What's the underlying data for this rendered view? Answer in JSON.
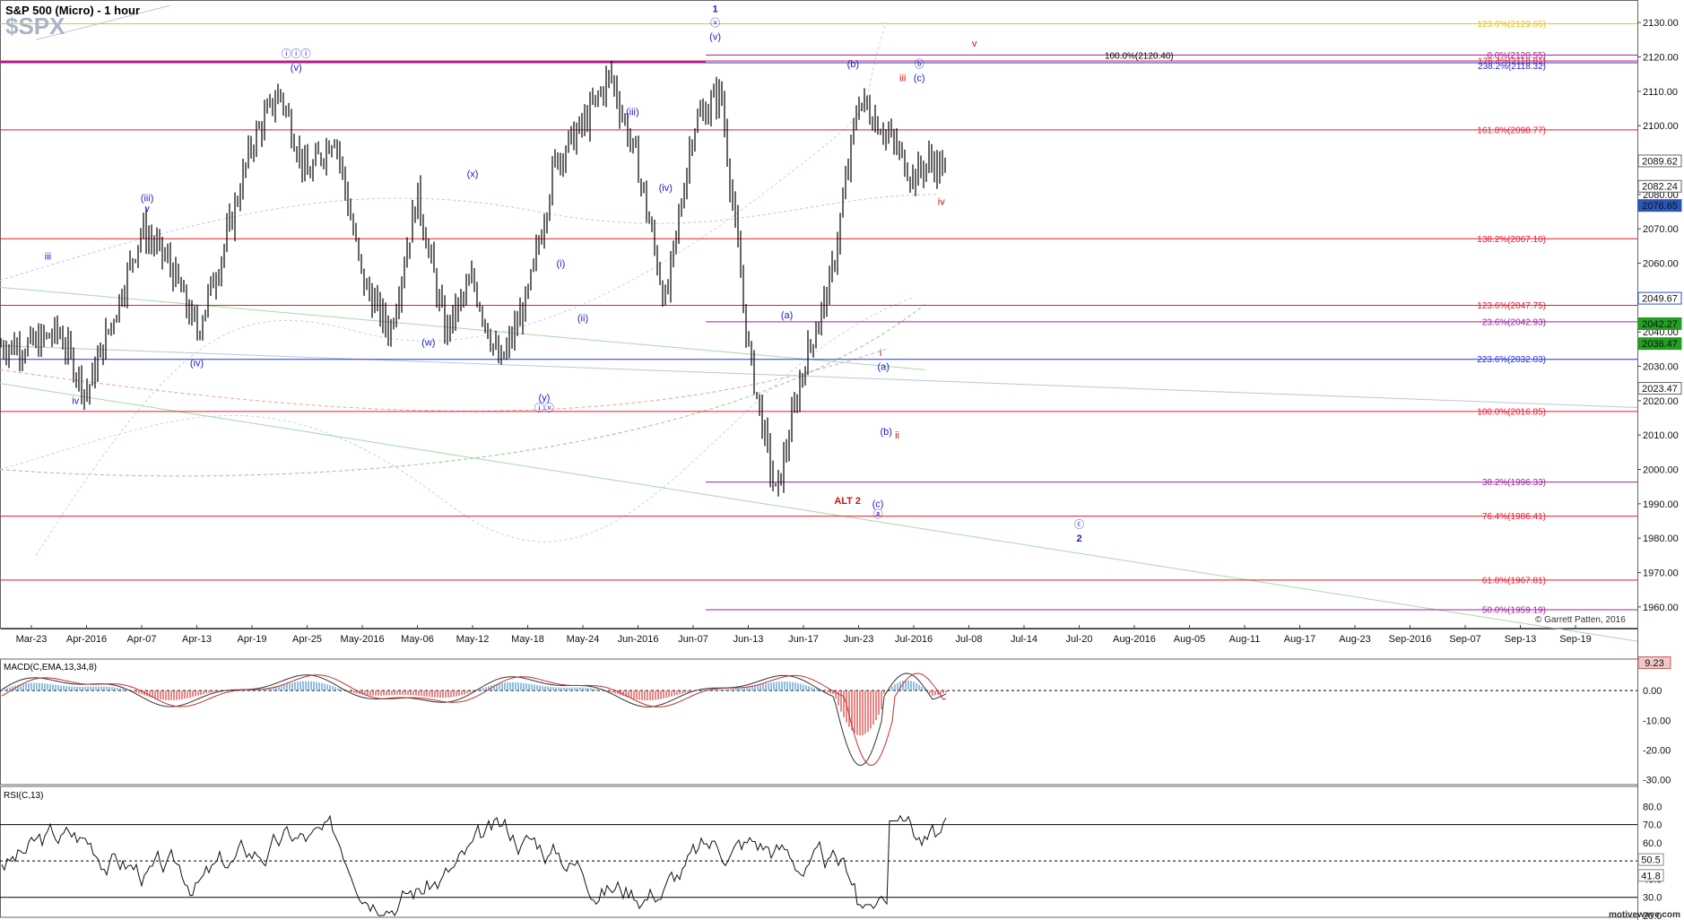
{
  "header": {
    "title": "S&P 500 (Micro) - 1 hour",
    "watermark": "$SPX"
  },
  "footer": {
    "brand": "motivewave.com",
    "copyright": "© Garrett Patten, 2016"
  },
  "colors": {
    "fib_red": "#e8192c",
    "fib_purple": "#a020a0",
    "fib_blue": "#2030e0",
    "fib_gold": "#e8c020",
    "wave_blue": "#1c1ccc",
    "wave_red": "#cc1111",
    "macd_up": "#6ea8d8",
    "macd_down": "#e06060",
    "tag_green": "#22a022",
    "tag_blue": "#2a56b8"
  },
  "chart_data": [
    {
      "type": "line",
      "title": "S&P 500 (Micro) - 1 hour",
      "ylim": [
        1955,
        2135
      ],
      "y_ticks": [
        1960,
        1970,
        1980,
        1990,
        2000,
        2010,
        2020,
        2030,
        2040,
        2050,
        2060,
        2070,
        2080,
        2090,
        2100,
        2110,
        2120,
        2130
      ],
      "x_ticks": [
        "Mar-23",
        "Apr-2016",
        "Apr-07",
        "Apr-13",
        "Apr-19",
        "Apr-25",
        "May-2016",
        "May-06",
        "May-12",
        "May-18",
        "May-24",
        "Jun-2016",
        "Jun-07",
        "Jun-13",
        "Jun-17",
        "Jun-23",
        "Jul-2016",
        "Jul-08",
        "Jul-14",
        "Jul-20",
        "Aug-2016",
        "Aug-05",
        "Aug-11",
        "Aug-17",
        "Aug-23",
        "Sep-2016",
        "Sep-07",
        "Sep-13",
        "Sep-19"
      ],
      "series": [
        {
          "name": "",
          "x_ticks_index": [
            0,
            0.5,
            1,
            1.5,
            2,
            2.5,
            3,
            3.5,
            4,
            4.5,
            5,
            5.5,
            6,
            6.5,
            7,
            7.5,
            8,
            8.5,
            9,
            9.5,
            10,
            10.5,
            11,
            11.5,
            12,
            12.5,
            13,
            13.5,
            14,
            14.5,
            15,
            15.5,
            16,
            16.3,
            16.6
          ],
          "values": [
            2036,
            2040,
            2022,
            2045,
            2070,
            2060,
            2040,
            2065,
            2095,
            2110,
            2085,
            2098,
            2055,
            2040,
            2080,
            2040,
            2055,
            2030,
            2050,
            2090,
            2100,
            2115,
            2088,
            2048,
            2100,
            2110,
            2035,
            1992,
            2030,
            2055,
            2108,
            2098,
            2085,
            2090,
            2086
          ]
        }
      ],
      "fib_levels": [
        {
          "label": "123.6%(2129.66)",
          "value": 2129.66,
          "color": "gold"
        },
        {
          "label": "0.0%(2120.55)",
          "value": 2120.55,
          "color": "purple"
        },
        {
          "label": "176.4%(2118.81)",
          "value": 2118.81,
          "color": "red"
        },
        {
          "label": "238.2%(2118.32)",
          "value": 2118.32,
          "color": "blue"
        },
        {
          "label": "100.0%(2120.40)",
          "value": 2120.4,
          "color": "black"
        },
        {
          "label": "161.8%(2098.77)",
          "value": 2098.77,
          "color": "red"
        },
        {
          "label": "138.2%(2067.10)",
          "value": 2067.1,
          "color": "red"
        },
        {
          "label": "123.6%(2047.75)",
          "value": 2047.75,
          "color": "red"
        },
        {
          "label": "23.6%(2042.93)",
          "value": 2042.93,
          "color": "purple"
        },
        {
          "label": "223.6%(2032.03)",
          "value": 2032.03,
          "color": "blue"
        },
        {
          "label": "100.0%(2016.85)",
          "value": 2016.85,
          "color": "red"
        },
        {
          "label": "38.2%(1996.33)",
          "value": 1996.33,
          "color": "purple"
        },
        {
          "label": "76.4%(1986.41)",
          "value": 1986.41,
          "color": "red"
        },
        {
          "label": "61.8%(1967.81)",
          "value": 1967.81,
          "color": "red"
        },
        {
          "label": "50.0%(1959.19)",
          "value": 1959.19,
          "color": "purple"
        }
      ],
      "price_tags": [
        {
          "label": "2089.62",
          "value": 2089.62,
          "style": "plain"
        },
        {
          "label": "2082.24",
          "value": 2082.24,
          "style": "plain"
        },
        {
          "label": "2076.65",
          "value": 2076.65,
          "style": "blue"
        },
        {
          "label": "2049.67",
          "value": 2049.67,
          "style": "blue-outline"
        },
        {
          "label": "2042.27",
          "value": 2042.27,
          "style": "green"
        },
        {
          "label": "2036.47",
          "value": 2036.47,
          "style": "green"
        },
        {
          "label": "2023.47",
          "value": 2023.47,
          "style": "plain"
        }
      ],
      "wave_labels": [
        {
          "text": "iii",
          "color": "blue",
          "x_index": 0.3,
          "y": 2061
        },
        {
          "text": "iv",
          "color": "blue",
          "x_index": 0.8,
          "y": 2019
        },
        {
          "text": "(iii)",
          "color": "blue",
          "x_index": 2.1,
          "y": 2078
        },
        {
          "text": "v",
          "color": "blue",
          "x_index": 2.1,
          "y": 2075
        },
        {
          "text": "(iv)",
          "color": "blue",
          "x_index": 3.0,
          "y": 2030
        },
        {
          "text": "ⓘⓘⓘ",
          "color": "blue",
          "x_index": 4.8,
          "y": 2120
        },
        {
          "text": "(v)",
          "color": "blue",
          "x_index": 4.8,
          "y": 2116
        },
        {
          "text": "(x)",
          "color": "blue",
          "x_index": 8.0,
          "y": 2085
        },
        {
          "text": "(w)",
          "color": "blue",
          "x_index": 7.2,
          "y": 2036
        },
        {
          "text": "(y)",
          "color": "blue",
          "x_index": 9.3,
          "y": 2020
        },
        {
          "text": "ⓘⓥ",
          "color": "blue",
          "x_index": 9.3,
          "y": 2017
        },
        {
          "text": "(i)",
          "color": "blue",
          "x_index": 9.6,
          "y": 2059
        },
        {
          "text": "(ii)",
          "color": "blue",
          "x_index": 10.0,
          "y": 2043
        },
        {
          "text": "(iii)",
          "color": "blue",
          "x_index": 10.9,
          "y": 2103
        },
        {
          "text": "(iv)",
          "color": "blue",
          "x_index": 11.5,
          "y": 2081
        },
        {
          "text": "1",
          "color": "blue",
          "x_index": 12.4,
          "y": 2133
        },
        {
          "text": "ⓥ",
          "color": "blue",
          "x_index": 12.4,
          "y": 2129
        },
        {
          "text": "(v)",
          "color": "blue",
          "x_index": 12.4,
          "y": 2125
        },
        {
          "text": "(b)",
          "color": "blue",
          "x_index": 14.9,
          "y": 2117
        },
        {
          "text": "(a)",
          "color": "blue",
          "x_index": 13.7,
          "y": 2044
        },
        {
          "text": "iii",
          "color": "red",
          "x_index": 15.8,
          "y": 2113
        },
        {
          "text": "ⓑ",
          "color": "blue",
          "x_index": 16.1,
          "y": 2117
        },
        {
          "text": "(c)",
          "color": "blue",
          "x_index": 16.1,
          "y": 2113
        },
        {
          "text": "v",
          "color": "red",
          "x_index": 17.1,
          "y": 2123
        },
        {
          "text": "iv",
          "color": "red",
          "x_index": 16.5,
          "y": 2077
        },
        {
          "text": "i",
          "color": "red",
          "x_index": 15.4,
          "y": 2033
        },
        {
          "text": "(a)",
          "color": "blue",
          "x_index": 15.45,
          "y": 2029
        },
        {
          "text": "(b)",
          "color": "blue",
          "x_index": 15.5,
          "y": 2010
        },
        {
          "text": "ii",
          "color": "red",
          "x_index": 15.7,
          "y": 2009
        },
        {
          "text": "ALT 2",
          "color": "red",
          "x_index": 14.8,
          "y": 1990
        },
        {
          "text": "(c)",
          "color": "blue",
          "x_index": 15.35,
          "y": 1989
        },
        {
          "text": "ⓐ",
          "color": "blue",
          "x_index": 15.35,
          "y": 1986
        },
        {
          "text": "ⓒ",
          "color": "blue",
          "x_index": 19.0,
          "y": 1983
        },
        {
          "text": "2",
          "color": "blue",
          "x_index": 19.0,
          "y": 1979
        }
      ]
    },
    {
      "type": "bar",
      "title": "MACD(C,EMA,13,34,8)",
      "ylim": [
        -31,
        10
      ],
      "y_ticks": [
        -30,
        -20,
        -10,
        0
      ],
      "y_tick_labels": [
        "-30.00",
        "-20.00",
        "-10.00",
        "0.00"
      ],
      "last_value_label": "9.23",
      "last_value": 9.23
    },
    {
      "type": "line",
      "title": "RSI(C,13)",
      "ylim": [
        20,
        90
      ],
      "y_ticks": [
        20,
        30,
        40,
        50,
        60,
        70,
        80
      ],
      "y_tick_labels": [
        "20.0",
        "30.0",
        "40.0",
        "50.0",
        "60.0",
        "70.0",
        "80.0"
      ],
      "overbought": 70,
      "oversold": 30,
      "midline": 50,
      "value_tags": [
        {
          "label": "50.5",
          "value": 50.5
        },
        {
          "label": "41.8",
          "value": 41.8
        }
      ]
    }
  ]
}
